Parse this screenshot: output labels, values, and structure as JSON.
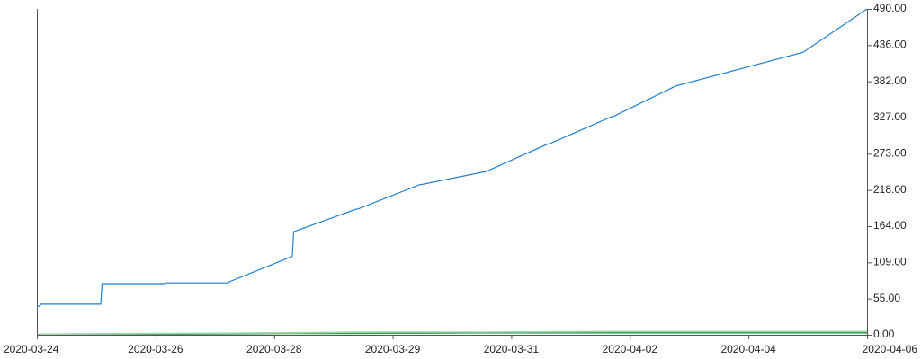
{
  "chart_data": {
    "type": "line",
    "title": "",
    "xlabel": "",
    "ylabel": "",
    "x_tick_labels": [
      "2020-03-24",
      "2020-03-26",
      "2020-03-28",
      "2020-03-29",
      "2020-03-31",
      "2020-04-02",
      "2020-04-04",
      "2020-04-06"
    ],
    "y_tick_labels": [
      "0.00",
      "55.00",
      "109.00",
      "164.00",
      "218.00",
      "273.00",
      "327.00",
      "382.00",
      "436.00",
      "490.00"
    ],
    "ylim": [
      0,
      490
    ],
    "y_axis_position": "right",
    "grid": false,
    "legend": "none",
    "series": [
      {
        "color": "#1f7fd1",
        "points": [
          [
            "2020-03-24",
            43
          ],
          [
            "2020-03-24",
            43
          ],
          [
            "2020-03-24",
            43
          ],
          [
            "2020-03-24",
            46
          ],
          [
            "2020-03-25",
            46
          ],
          [
            "2020-03-25",
            77
          ],
          [
            "2020-03-26",
            77
          ],
          [
            "2020-03-26",
            78
          ],
          [
            "2020-03-27",
            78
          ],
          [
            "2020-03-27",
            80
          ],
          [
            "2020-03-28",
            118
          ],
          [
            "2020-03-28",
            155
          ],
          [
            "2020-03-29",
            189
          ],
          [
            "2020-03-29",
            189
          ],
          [
            "2020-03-30",
            226
          ],
          [
            "2020-03-30",
            226
          ],
          [
            "2020-03-31",
            245
          ],
          [
            "2020-03-31",
            245
          ],
          [
            "2020-04-01",
            287
          ],
          [
            "2020-04-01",
            287
          ],
          [
            "2020-04-02",
            328
          ],
          [
            "2020-04-02",
            328
          ],
          [
            "2020-04-03",
            374
          ],
          [
            "2020-04-05",
            425
          ],
          [
            "2020-04-06",
            490
          ]
        ]
      },
      {
        "color": "#2ea44f",
        "points": [
          [
            "2020-03-24",
            0
          ],
          [
            "2020-03-26",
            1
          ],
          [
            "2020-03-28",
            2
          ],
          [
            "2020-03-29",
            2
          ],
          [
            "2020-03-31",
            3
          ],
          [
            "2020-04-02",
            3
          ],
          [
            "2020-04-04",
            3
          ],
          [
            "2020-04-06",
            3
          ]
        ]
      },
      {
        "color": "#9fd4ac",
        "points": [
          [
            "2020-03-24",
            1
          ],
          [
            "2020-03-26",
            2
          ],
          [
            "2020-03-28",
            3
          ],
          [
            "2020-03-29",
            4
          ],
          [
            "2020-03-31",
            4
          ],
          [
            "2020-04-02",
            5
          ],
          [
            "2020-04-04",
            5
          ],
          [
            "2020-04-06",
            5
          ]
        ]
      }
    ]
  }
}
